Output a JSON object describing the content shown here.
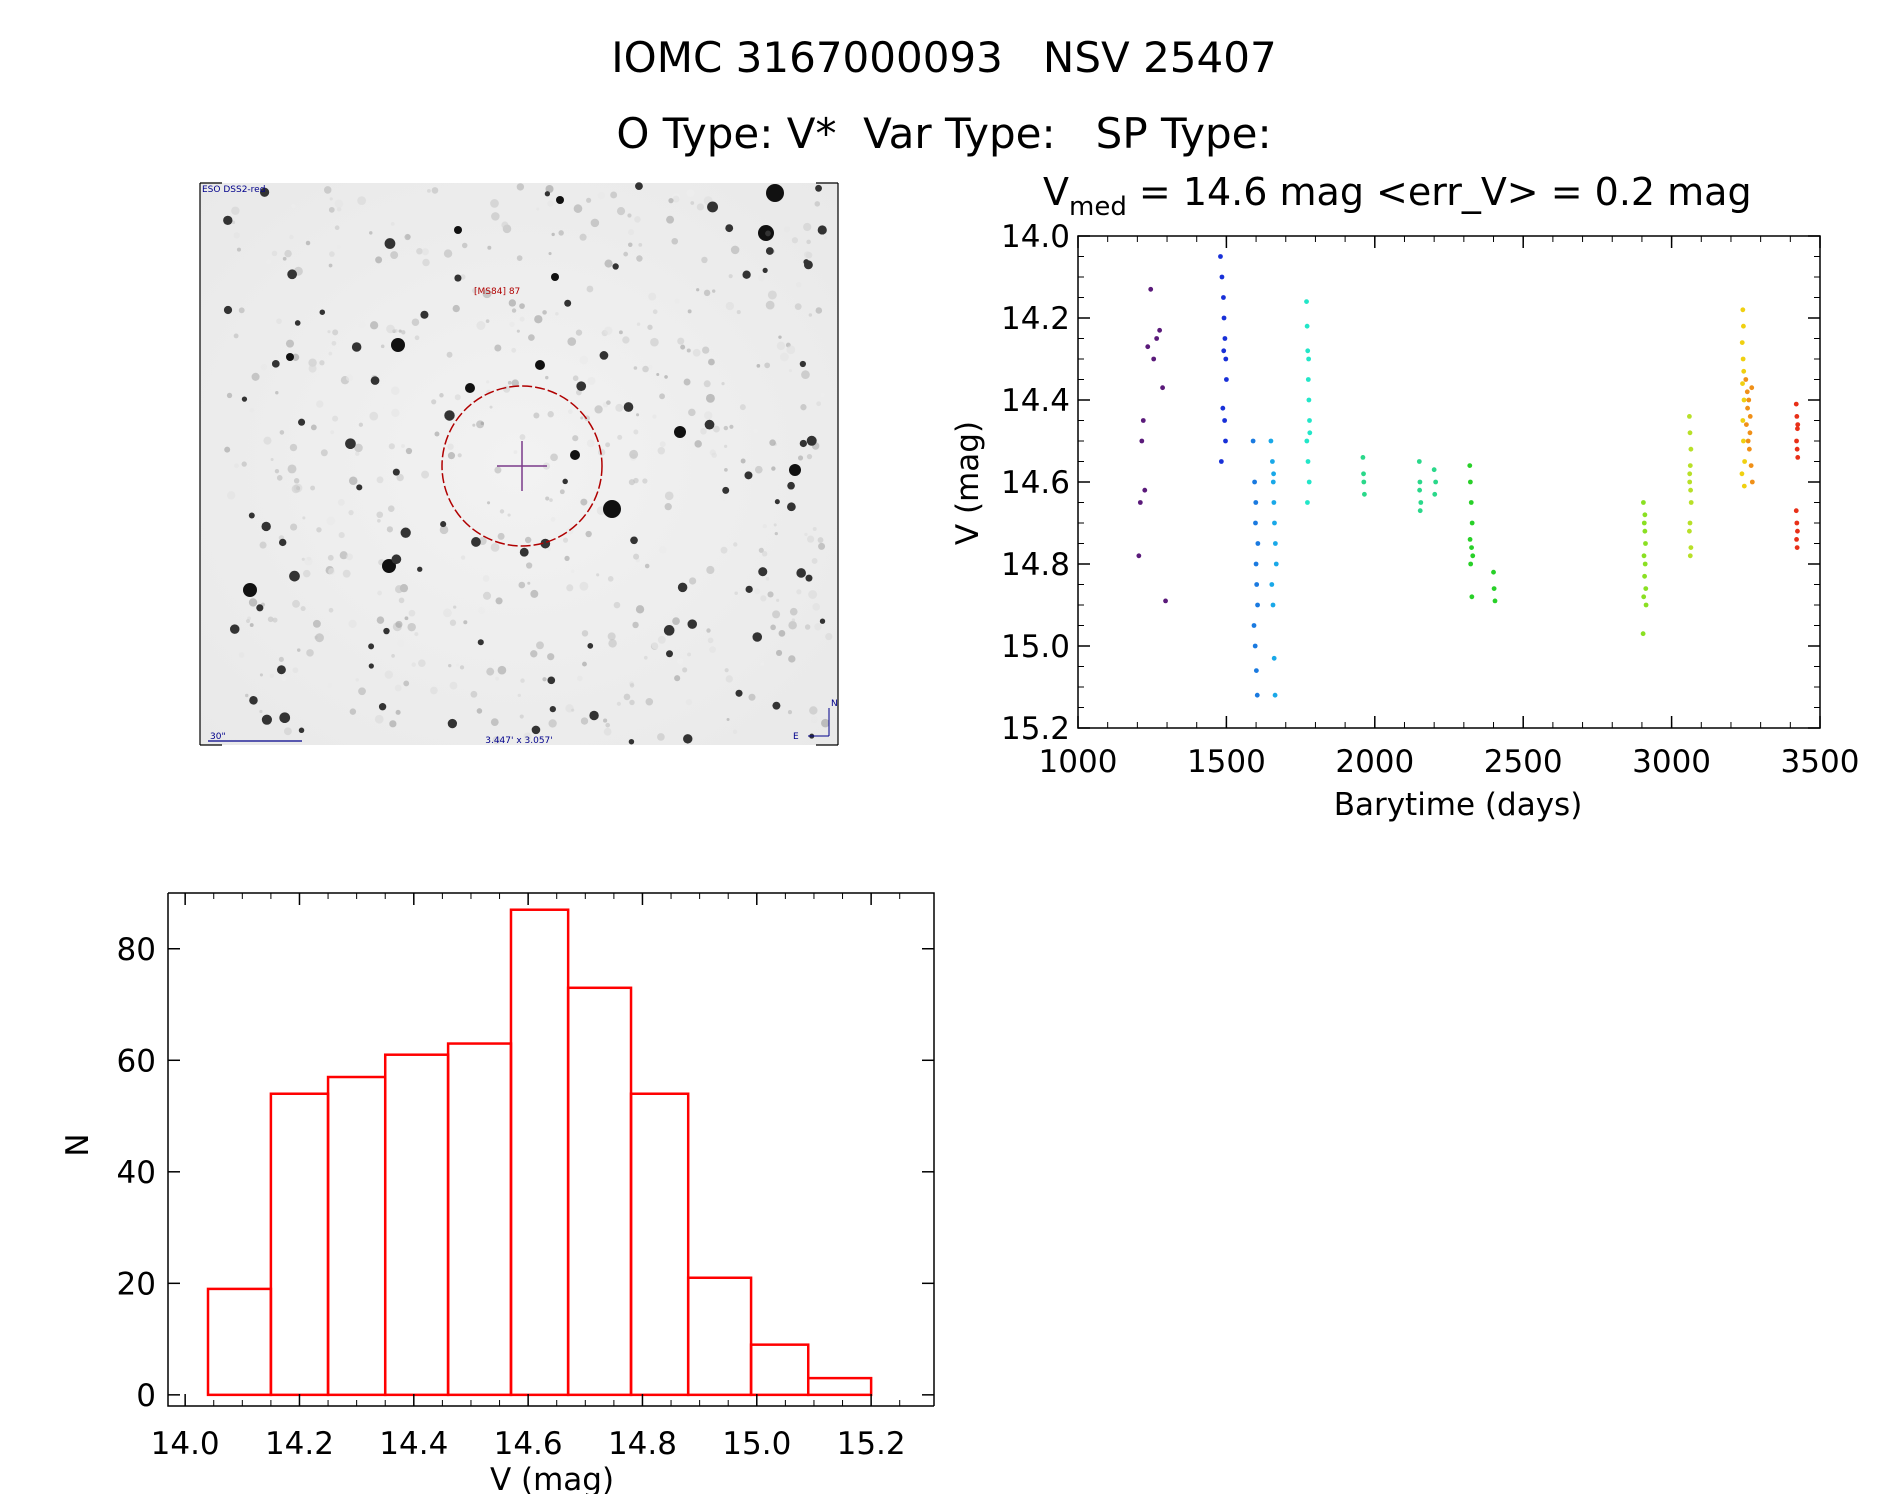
{
  "header": {
    "title": "IOMC 3167000093   NSV 25407",
    "types": "O Type: V*  Var Type:   SP Type:"
  },
  "finding_chart": {
    "survey_label": "ESO DSS2-red",
    "object_label": "[MS84] 87",
    "scale_label": "30\"",
    "fov_label": "3.447' x 3.057'",
    "north_label": "N",
    "east_label": "E"
  },
  "colors": {
    "histogram": "#ff0000",
    "circle": "#b00000",
    "crosshair": "#7a3a8a",
    "label_blue": "#00008b"
  },
  "chart_data": [
    {
      "type": "scatter",
      "title_parts": {
        "v": "V",
        "sub": "med",
        "rest": " = 14.6 mag <err_V> = 0.2 mag"
      },
      "xlabel": "Barytime (days)",
      "ylabel": "V (mag)",
      "xlim": [
        1000,
        3500
      ],
      "ylim": [
        15.2,
        14.0
      ],
      "y_inverted": true,
      "xticks": [
        "1000",
        "1500",
        "2000",
        "2500",
        "3000",
        "3500"
      ],
      "yticks": [
        "14.0",
        "14.2",
        "14.4",
        "14.6",
        "14.8",
        "15.0",
        "15.2"
      ],
      "color_encoding": "rainbow by time",
      "groups": [
        {
          "color": "#5a1a7a",
          "x": [
            1205,
            1210,
            1215,
            1220,
            1225,
            1235,
            1245,
            1255,
            1265,
            1275,
            1285,
            1295
          ],
          "y": [
            14.78,
            14.65,
            14.5,
            14.45,
            14.62,
            14.27,
            14.13,
            14.3,
            14.25,
            14.23,
            14.37,
            14.89
          ]
        },
        {
          "color": "#1830d8",
          "x": [
            1480,
            1485,
            1490,
            1492,
            1495,
            1498,
            1500,
            1488,
            1494,
            1497,
            1483,
            1491
          ],
          "y": [
            14.05,
            14.1,
            14.15,
            14.2,
            14.25,
            14.3,
            14.35,
            14.42,
            14.45,
            14.5,
            14.55,
            14.28
          ]
        },
        {
          "color": "#1a7ae0",
          "x": [
            1590,
            1595,
            1598,
            1600,
            1602,
            1605,
            1593,
            1597,
            1601,
            1604,
            1606,
            1599
          ],
          "y": [
            14.5,
            14.6,
            14.7,
            14.8,
            14.85,
            14.9,
            14.95,
            15.0,
            15.06,
            15.12,
            14.75,
            14.65
          ]
        },
        {
          "color": "#19a8e8",
          "x": [
            1650,
            1655,
            1658,
            1660,
            1662,
            1665,
            1668,
            1653,
            1657,
            1661,
            1664,
            1659
          ],
          "y": [
            14.5,
            14.55,
            14.6,
            14.65,
            14.7,
            14.75,
            14.8,
            14.85,
            14.9,
            15.03,
            15.12,
            14.58
          ]
        },
        {
          "color": "#22e6c8",
          "x": [
            1770,
            1772,
            1774,
            1776,
            1778,
            1780,
            1771,
            1775,
            1779,
            1773,
            1777,
            1781
          ],
          "y": [
            14.16,
            14.22,
            14.28,
            14.35,
            14.4,
            14.45,
            14.5,
            14.55,
            14.6,
            14.65,
            14.3,
            14.48
          ]
        },
        {
          "color": "#2ad88a",
          "x": [
            1960,
            1962,
            1965,
            1963,
            2150,
            2152,
            2155,
            2153,
            2151,
            2200,
            2205,
            2202
          ],
          "y": [
            14.54,
            14.58,
            14.63,
            14.6,
            14.55,
            14.6,
            14.65,
            14.67,
            14.62,
            14.57,
            14.6,
            14.63
          ]
        },
        {
          "color": "#28d028",
          "x": [
            2320,
            2322,
            2325,
            2328,
            2321,
            2326,
            2330,
            2323,
            2400,
            2402,
            2405,
            2327
          ],
          "y": [
            14.56,
            14.6,
            14.65,
            14.7,
            14.74,
            14.76,
            14.78,
            14.8,
            14.82,
            14.86,
            14.89,
            14.88
          ]
        },
        {
          "color": "#8ae022",
          "x": [
            2905,
            2908,
            2910,
            2912,
            2907,
            2911,
            2909,
            2913,
            2906,
            2914,
            2904,
            2910
          ],
          "y": [
            14.65,
            14.7,
            14.72,
            14.75,
            14.78,
            14.8,
            14.83,
            14.86,
            14.88,
            14.9,
            14.97,
            14.68
          ]
        },
        {
          "color": "#b8e028",
          "x": [
            3060,
            3062,
            3065,
            3063,
            3061,
            3064,
            3066,
            3062,
            3060,
            3065,
            3063,
            3061
          ],
          "y": [
            14.44,
            14.48,
            14.52,
            14.56,
            14.6,
            14.62,
            14.65,
            14.7,
            14.72,
            14.76,
            14.78,
            14.58
          ]
        },
        {
          "color": "#f0d010",
          "x": [
            3240,
            3242,
            3238,
            3241,
            3243,
            3239,
            3244,
            3240,
            3242,
            3246,
            3237,
            3245
          ],
          "y": [
            14.18,
            14.22,
            14.26,
            14.3,
            14.33,
            14.36,
            14.4,
            14.45,
            14.5,
            14.55,
            14.58,
            14.61
          ]
        },
        {
          "color": "#f09018",
          "x": [
            3250,
            3255,
            3260,
            3265,
            3270,
            3252,
            3258,
            3262,
            3268,
            3256,
            3264,
            3272
          ],
          "y": [
            14.35,
            14.38,
            14.4,
            14.44,
            14.37,
            14.46,
            14.5,
            14.52,
            14.56,
            14.42,
            14.48,
            14.6
          ]
        },
        {
          "color": "#e83018",
          "x": [
            3420,
            3422,
            3424,
            3421,
            3423,
            3425,
            3420,
            3422,
            3424,
            3421,
            3423,
            3425
          ],
          "y": [
            14.41,
            14.44,
            14.47,
            14.5,
            14.52,
            14.54,
            14.67,
            14.7,
            14.72,
            14.74,
            14.76,
            14.46
          ]
        }
      ]
    },
    {
      "type": "bar",
      "subtype": "histogram",
      "xlabel": "V (mag)",
      "ylabel": "N",
      "xlim": [
        13.97,
        15.31
      ],
      "ylim": [
        -2,
        90
      ],
      "xticks": [
        "14.0",
        "14.2",
        "14.4",
        "14.6",
        "14.8",
        "15.0",
        "15.2"
      ],
      "yticks": [
        "0",
        "20",
        "40",
        "60",
        "80"
      ],
      "bin_edges": [
        14.04,
        14.15,
        14.25,
        14.35,
        14.46,
        14.57,
        14.67,
        14.78,
        14.88,
        14.99,
        15.09,
        15.2
      ],
      "values": [
        19,
        54,
        57,
        61,
        63,
        87,
        73,
        54,
        21,
        9,
        3
      ]
    }
  ]
}
